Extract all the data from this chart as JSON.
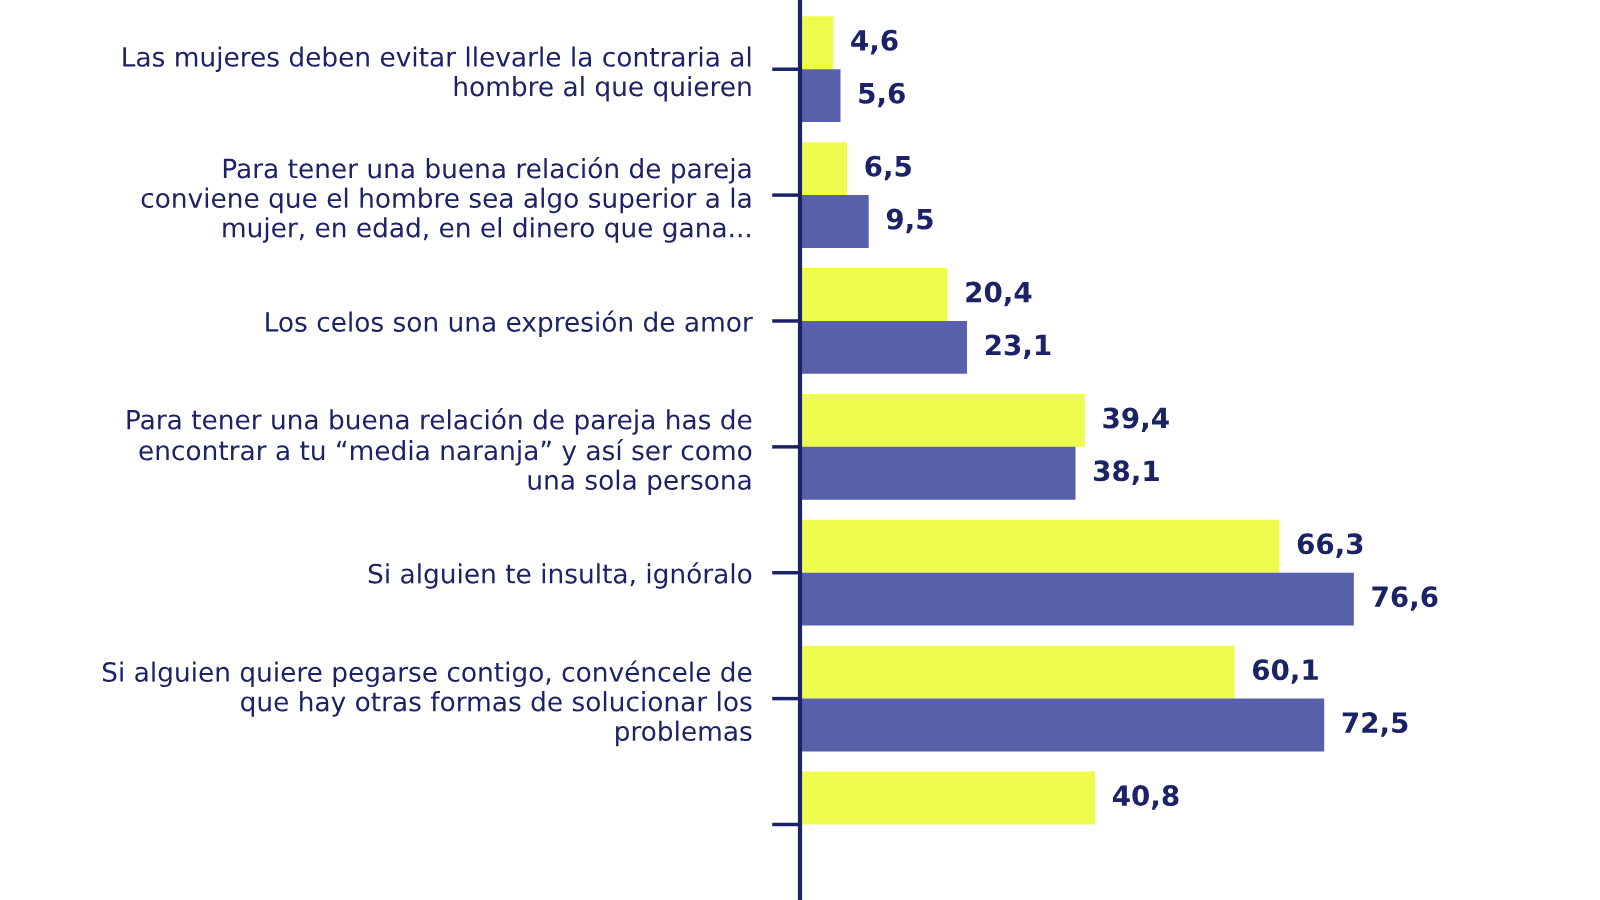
{
  "chart_data": {
    "type": "bar",
    "orientation": "horizontal",
    "tick_labels": "y",
    "categories": [
      "Las mujeres deben evitar llevarle la contraria al\nhombre al que quieren",
      "Para tener una buena relación de pareja\nconviene que el hombre sea algo superior a la\nmujer, en edad, en el dinero que gana...",
      "Los celos son una expresión de amor",
      "Para tener una buena relación de pareja has de\nencontrar a tu “media naranja” y así ser como\nuna sola persona",
      "Si alguien te insulta, ignóralo",
      "Si alguien quiere pegarse contigo, convéncele de\nque hay otras formas de solucionar los\nproblemas",
      null
    ],
    "series": [
      {
        "color": "#eefc4e",
        "values": [
          4.6,
          6.5,
          20.4,
          39.4,
          66.3,
          60.1,
          40.8
        ],
        "value_labels": [
          "4,6",
          "6,5",
          "20,4",
          "39,4",
          "66,3",
          "60,1",
          "40,8"
        ]
      },
      {
        "color": "#5860a9",
        "values": [
          5.6,
          9.5,
          23.1,
          38.1,
          76.6,
          72.5,
          null
        ],
        "value_labels": [
          "5,6",
          "9,5",
          "23,1",
          "38,1",
          "76,6",
          "72,5",
          null
        ]
      }
    ]
  }
}
